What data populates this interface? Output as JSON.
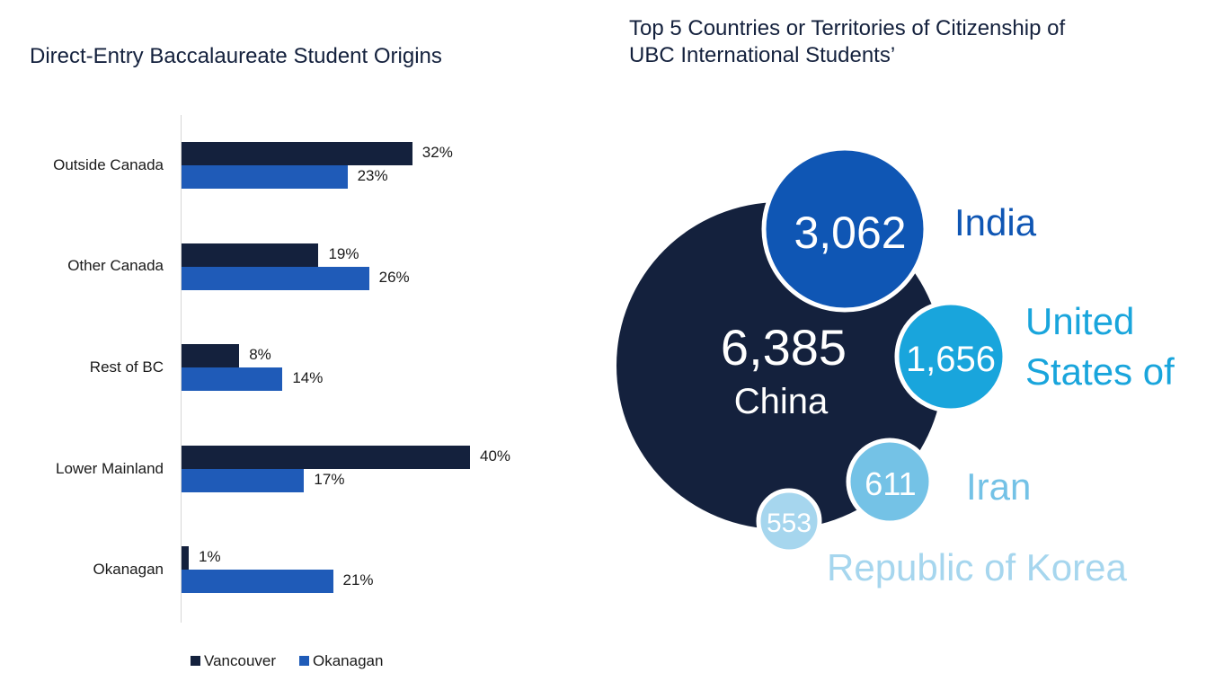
{
  "left_chart": {
    "title": "Direct-Entry Baccalaureate Student Origins",
    "legend": {
      "vancouver_label": "Vancouver",
      "okanagan_label": "Okanagan"
    },
    "value_labels": {
      "v0": "32%",
      "o0": "23%",
      "v1": "19%",
      "o1": "26%",
      "v2": "8%",
      "o2": "14%",
      "v3": "40%",
      "o3": "17%",
      "v4": "1%",
      "o4": "21%"
    },
    "category_labels": {
      "c0": "Outside Canada",
      "c1": "Other Canada",
      "c2": "Rest of BC",
      "c3": "Lower Mainland",
      "c4": "Okanagan"
    }
  },
  "right_chart": {
    "title_line1": "Top 5 Countries or Territories of Citizenship of",
    "title_line2": "UBC International Students’",
    "labels": {
      "china_value": "6,385",
      "china_name": "China",
      "india_value": "3,062",
      "india_name": "India",
      "us_value": "1,656",
      "us_name_line1": "United",
      "us_name_line2": "States of",
      "iran_value": "611",
      "iran_name": "Iran",
      "korea_value": "553",
      "korea_name": "Republic of Korea"
    }
  },
  "colors": {
    "vancouver": "#14213d",
    "okanagan": "#1f5bb8",
    "china": "#14213d",
    "india": "#0f56b4",
    "us": "#19a5dc",
    "iran": "#74c2e6",
    "korea": "#a6d6ee"
  },
  "chart_data": [
    {
      "type": "bar",
      "orientation": "horizontal",
      "title": "Direct-Entry Baccalaureate Student Origins",
      "categories": [
        "Outside Canada",
        "Other Canada",
        "Rest of BC",
        "Lower Mainland",
        "Okanagan"
      ],
      "series": [
        {
          "name": "Vancouver",
          "values": [
            32,
            19,
            8,
            40,
            1
          ]
        },
        {
          "name": "Okanagan",
          "values": [
            23,
            26,
            14,
            17,
            21
          ]
        }
      ],
      "unit": "%",
      "legend": "bottom",
      "grid": false
    },
    {
      "type": "bubble",
      "title": "Top 5 Countries or Territories of Citizenship of UBC International Students’",
      "categories": [
        "China",
        "India",
        "United States of",
        "Iran",
        "Republic of Korea"
      ],
      "values": [
        6385,
        3062,
        1656,
        611,
        553
      ]
    }
  ]
}
